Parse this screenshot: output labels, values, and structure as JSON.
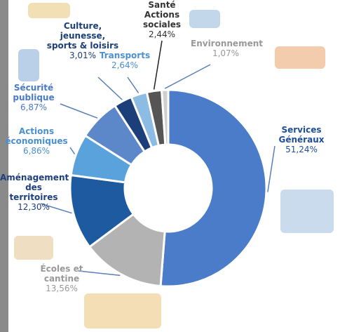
{
  "chart_data": {
    "type": "donut",
    "categories": [
      "Services Généraux",
      "Écoles et cantine",
      "Aménagement des territoires",
      "Actions économiques",
      "Sécurité publique",
      "Culture, jeunesse, sports & loisirs",
      "Transports",
      "Santé Actions sociales",
      "Environnement"
    ],
    "values": [
      51.24,
      13.56,
      12.3,
      6.86,
      6.87,
      3.01,
      2.64,
      2.44,
      1.07
    ],
    "value_labels": [
      "51,24%",
      "13,56%",
      "12,30%",
      "6,86%",
      "6,87%",
      "3,01%",
      "2,64%",
      "2,44%",
      "1,07%"
    ],
    "colors": [
      "#4b7cc9",
      "#b3b3b3",
      "#1e5aa0",
      "#5aa2dc",
      "#5c87c9",
      "#1c3f7a",
      "#8cbbe3",
      "#555555",
      "#cfcfcf"
    ]
  }
}
